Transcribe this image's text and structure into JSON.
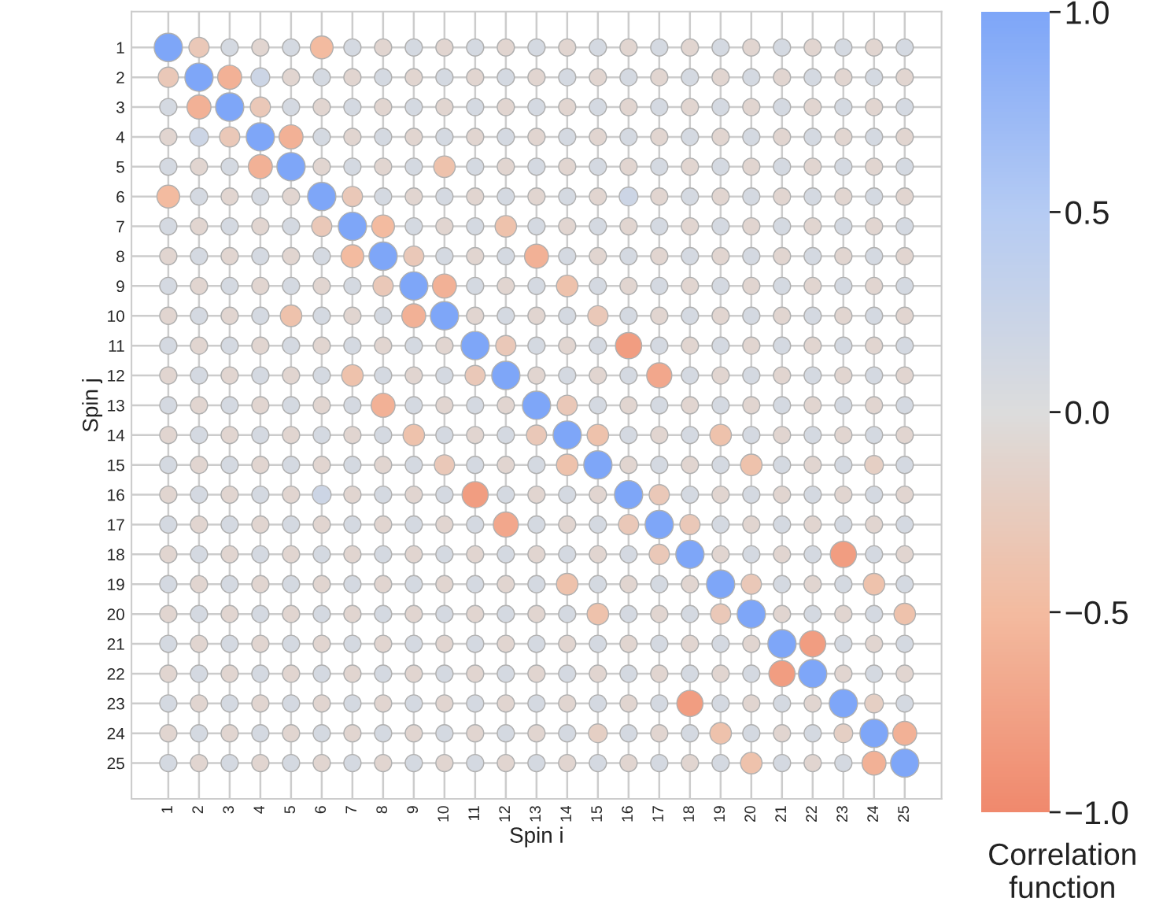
{
  "chart_data": {
    "type": "scatter",
    "marker": "circle",
    "grid": true,
    "xlabel": "Spin i",
    "ylabel": "Spin j",
    "clabel": "Correlation function",
    "xlim": [
      -0.2,
      26.2
    ],
    "ylim": [
      26.2,
      -0.2
    ],
    "xticks": [
      1,
      2,
      3,
      4,
      5,
      6,
      7,
      8,
      9,
      10,
      11,
      12,
      13,
      14,
      15,
      16,
      17,
      18,
      19,
      20,
      21,
      22,
      23,
      24,
      25
    ],
    "yticks": [
      1,
      2,
      3,
      4,
      5,
      6,
      7,
      8,
      9,
      10,
      11,
      12,
      13,
      14,
      15,
      16,
      17,
      18,
      19,
      20,
      21,
      22,
      23,
      24,
      25
    ],
    "clim": [
      -1,
      1
    ],
    "cticks": [
      {
        "value": -1,
        "label": "−1.0"
      },
      {
        "value": -0.5,
        "label": "−0.5"
      },
      {
        "value": 0,
        "label": "0.0"
      },
      {
        "value": 0.5,
        "label": "0.5"
      },
      {
        "value": 1,
        "label": "1.0"
      }
    ],
    "x": [
      1,
      2,
      3,
      4,
      5,
      6,
      7,
      8,
      9,
      10,
      11,
      12,
      13,
      14,
      15,
      16,
      17,
      18,
      19,
      20,
      21,
      22,
      23,
      24,
      25
    ],
    "series": [
      {
        "values": [
          1,
          1,
          1,
          1,
          1,
          1,
          1,
          1,
          1,
          1,
          1,
          1,
          1,
          1,
          1,
          1,
          1,
          1,
          1,
          1,
          1,
          1,
          1,
          1,
          1
        ],
        "colors": [
          "#7ea6f8",
          "#eac8b8",
          "#d4d9e1",
          "#e1d5d0",
          "#d4d9e1",
          "#f3bba0",
          "#d4d9e1",
          "#e1d5d0",
          "#d4d9e1",
          "#e1d5d0",
          "#d4d9e1",
          "#e1d5d0",
          "#d4d9e1",
          "#e1d5d0",
          "#d4d9e1",
          "#e1d5d0",
          "#d4d9e1",
          "#e1d5d0",
          "#d4d9e1",
          "#e1d5d0",
          "#d4d9e1",
          "#e1d5d0",
          "#d4d9e1",
          "#e1d5d0",
          "#d4d9e1"
        ],
        "sizes": [
          1,
          0.51,
          0.37,
          0.37,
          0.37,
          0.65,
          0.37,
          0.37,
          0.37,
          0.37,
          0.37,
          0.37,
          0.37,
          0.37,
          0.37,
          0.37,
          0.37,
          0.37,
          0.37,
          0.37,
          0.37,
          0.37,
          0.37,
          0.37,
          0.37
        ]
      },
      {
        "values": [
          2,
          2,
          2,
          2,
          2,
          2,
          2,
          2,
          2,
          2,
          2,
          2,
          2,
          2,
          2,
          2,
          2,
          2,
          2,
          2,
          2,
          2,
          2,
          2,
          2
        ],
        "colors": [
          "#eac8b8",
          "#7ea6f8",
          "#f2b196",
          "#ccd5e5",
          "#e1d5d0",
          "#d4d9e1",
          "#e1d5d0",
          "#d4d9e1",
          "#e1d5d0",
          "#d4d9e1",
          "#e1d5d0",
          "#d4d9e1",
          "#e1d5d0",
          "#d4d9e1",
          "#e1d5d0",
          "#d4d9e1",
          "#e1d5d0",
          "#d4d9e1",
          "#e1d5d0",
          "#d4d9e1",
          "#e1d5d0",
          "#d4d9e1",
          "#e1d5d0",
          "#d4d9e1",
          "#e1d5d0"
        ],
        "sizes": [
          0.51,
          1,
          0.72,
          0.44,
          0.37,
          0.37,
          0.37,
          0.37,
          0.37,
          0.37,
          0.37,
          0.37,
          0.37,
          0.37,
          0.37,
          0.37,
          0.37,
          0.37,
          0.37,
          0.37,
          0.37,
          0.37,
          0.37,
          0.37,
          0.37
        ]
      },
      {
        "values": [
          3,
          3,
          3,
          3,
          3,
          3,
          3,
          3,
          3,
          3,
          3,
          3,
          3,
          3,
          3,
          3,
          3,
          3,
          3,
          3,
          3,
          3,
          3,
          3,
          3
        ],
        "colors": [
          "#d4d9e1",
          "#f2b196",
          "#7ea6f8",
          "#eac8b8",
          "#d4d9e1",
          "#e1d5d0",
          "#d4d9e1",
          "#e1d5d0",
          "#d4d9e1",
          "#e1d5d0",
          "#d4d9e1",
          "#e1d5d0",
          "#d4d9e1",
          "#e1d5d0",
          "#d4d9e1",
          "#e1d5d0",
          "#d4d9e1",
          "#e1d5d0",
          "#d4d9e1",
          "#e1d5d0",
          "#d4d9e1",
          "#e1d5d0",
          "#d4d9e1",
          "#e1d5d0",
          "#d4d9e1"
        ],
        "sizes": [
          0.37,
          0.72,
          1,
          0.51,
          0.37,
          0.37,
          0.37,
          0.37,
          0.37,
          0.37,
          0.37,
          0.37,
          0.37,
          0.37,
          0.37,
          0.37,
          0.37,
          0.37,
          0.37,
          0.37,
          0.37,
          0.37,
          0.37,
          0.37,
          0.37
        ]
      },
      {
        "values": [
          4,
          4,
          4,
          4,
          4,
          4,
          4,
          4,
          4,
          4,
          4,
          4,
          4,
          4,
          4,
          4,
          4,
          4,
          4,
          4,
          4,
          4,
          4,
          4,
          4
        ],
        "colors": [
          "#e1d5d0",
          "#ccd5e5",
          "#eac8b8",
          "#7ea6f8",
          "#f2b196",
          "#d4d9e1",
          "#e1d5d0",
          "#d4d9e1",
          "#e1d5d0",
          "#d4d9e1",
          "#e1d5d0",
          "#d4d9e1",
          "#e1d5d0",
          "#d4d9e1",
          "#e1d5d0",
          "#d4d9e1",
          "#e1d5d0",
          "#d4d9e1",
          "#e1d5d0",
          "#d4d9e1",
          "#e1d5d0",
          "#d4d9e1",
          "#e1d5d0",
          "#d4d9e1",
          "#e1d5d0"
        ],
        "sizes": [
          0.37,
          0.44,
          0.51,
          1,
          0.72,
          0.37,
          0.37,
          0.37,
          0.37,
          0.37,
          0.37,
          0.37,
          0.37,
          0.37,
          0.37,
          0.37,
          0.37,
          0.37,
          0.37,
          0.37,
          0.37,
          0.37,
          0.37,
          0.37,
          0.37
        ]
      },
      {
        "values": [
          5,
          5,
          5,
          5,
          5,
          5,
          5,
          5,
          5,
          5,
          5,
          5,
          5,
          5,
          5,
          5,
          5,
          5,
          5,
          5,
          5,
          5,
          5,
          5,
          5
        ],
        "colors": [
          "#d4d9e1",
          "#e1d5d0",
          "#d4d9e1",
          "#f2b196",
          "#7ea6f8",
          "#e1d5d0",
          "#d4d9e1",
          "#e1d5d0",
          "#d4d9e1",
          "#eec2ac",
          "#d4d9e1",
          "#e1d5d0",
          "#d4d9e1",
          "#e1d5d0",
          "#d4d9e1",
          "#e1d5d0",
          "#d4d9e1",
          "#e1d5d0",
          "#d4d9e1",
          "#e1d5d0",
          "#d4d9e1",
          "#e1d5d0",
          "#d4d9e1",
          "#e1d5d0",
          "#d4d9e1"
        ],
        "sizes": [
          0.37,
          0.37,
          0.37,
          0.72,
          1,
          0.37,
          0.37,
          0.37,
          0.37,
          0.58,
          0.37,
          0.37,
          0.37,
          0.37,
          0.37,
          0.37,
          0.37,
          0.37,
          0.37,
          0.37,
          0.37,
          0.37,
          0.37,
          0.37,
          0.37
        ]
      },
      {
        "values": [
          6,
          6,
          6,
          6,
          6,
          6,
          6,
          6,
          6,
          6,
          6,
          6,
          6,
          6,
          6,
          6,
          6,
          6,
          6,
          6,
          6,
          6,
          6,
          6,
          6
        ],
        "colors": [
          "#f3bba0",
          "#d4d9e1",
          "#e1d5d0",
          "#d4d9e1",
          "#e1d5d0",
          "#7ea6f8",
          "#eac8b8",
          "#d4d9e1",
          "#e1d5d0",
          "#d4d9e1",
          "#e1d5d0",
          "#d4d9e1",
          "#e1d5d0",
          "#d4d9e1",
          "#e1d5d0",
          "#ccd5e5",
          "#e1d5d0",
          "#d4d9e1",
          "#e1d5d0",
          "#d4d9e1",
          "#e1d5d0",
          "#d4d9e1",
          "#e1d5d0",
          "#d4d9e1",
          "#e1d5d0"
        ],
        "sizes": [
          0.65,
          0.37,
          0.37,
          0.37,
          0.37,
          1,
          0.51,
          0.37,
          0.37,
          0.37,
          0.37,
          0.37,
          0.37,
          0.37,
          0.37,
          0.44,
          0.37,
          0.37,
          0.37,
          0.37,
          0.37,
          0.37,
          0.37,
          0.37,
          0.37
        ]
      },
      {
        "values": [
          7,
          7,
          7,
          7,
          7,
          7,
          7,
          7,
          7,
          7,
          7,
          7,
          7,
          7,
          7,
          7,
          7,
          7,
          7,
          7,
          7,
          7,
          7,
          7,
          7
        ],
        "colors": [
          "#d4d9e1",
          "#e1d5d0",
          "#d4d9e1",
          "#e1d5d0",
          "#d4d9e1",
          "#eac8b8",
          "#7ea6f8",
          "#f3bba0",
          "#d4d9e1",
          "#e1d5d0",
          "#d4d9e1",
          "#eec2ac",
          "#d4d9e1",
          "#e1d5d0",
          "#d4d9e1",
          "#e1d5d0",
          "#d4d9e1",
          "#e1d5d0",
          "#d4d9e1",
          "#e1d5d0",
          "#d4d9e1",
          "#e1d5d0",
          "#d4d9e1",
          "#e1d5d0",
          "#d4d9e1"
        ],
        "sizes": [
          0.37,
          0.37,
          0.37,
          0.37,
          0.37,
          0.51,
          1,
          0.65,
          0.37,
          0.37,
          0.37,
          0.58,
          0.37,
          0.37,
          0.37,
          0.37,
          0.37,
          0.37,
          0.37,
          0.37,
          0.37,
          0.37,
          0.37,
          0.37,
          0.37
        ]
      },
      {
        "values": [
          8,
          8,
          8,
          8,
          8,
          8,
          8,
          8,
          8,
          8,
          8,
          8,
          8,
          8,
          8,
          8,
          8,
          8,
          8,
          8,
          8,
          8,
          8,
          8,
          8
        ],
        "colors": [
          "#e1d5d0",
          "#d4d9e1",
          "#e1d5d0",
          "#d4d9e1",
          "#e1d5d0",
          "#d4d9e1",
          "#f3bba0",
          "#7ea6f8",
          "#eac8b8",
          "#d4d9e1",
          "#e1d5d0",
          "#d4d9e1",
          "#f2b196",
          "#d4d9e1",
          "#e1d5d0",
          "#d4d9e1",
          "#e1d5d0",
          "#d4d9e1",
          "#e1d5d0",
          "#d4d9e1",
          "#e1d5d0",
          "#d4d9e1",
          "#e1d5d0",
          "#d4d9e1",
          "#e1d5d0"
        ],
        "sizes": [
          0.37,
          0.37,
          0.37,
          0.37,
          0.37,
          0.37,
          0.65,
          1,
          0.51,
          0.37,
          0.37,
          0.37,
          0.72,
          0.37,
          0.37,
          0.37,
          0.37,
          0.37,
          0.37,
          0.37,
          0.37,
          0.37,
          0.37,
          0.37,
          0.37
        ]
      },
      {
        "values": [
          9,
          9,
          9,
          9,
          9,
          9,
          9,
          9,
          9,
          9,
          9,
          9,
          9,
          9,
          9,
          9,
          9,
          9,
          9,
          9,
          9,
          9,
          9,
          9,
          9
        ],
        "colors": [
          "#d4d9e1",
          "#e1d5d0",
          "#d4d9e1",
          "#e1d5d0",
          "#d4d9e1",
          "#e1d5d0",
          "#d4d9e1",
          "#eac8b8",
          "#7ea6f8",
          "#f2b196",
          "#d4d9e1",
          "#e1d5d0",
          "#d4d9e1",
          "#eec2ac",
          "#d4d9e1",
          "#e1d5d0",
          "#d4d9e1",
          "#e1d5d0",
          "#d4d9e1",
          "#e1d5d0",
          "#d4d9e1",
          "#e1d5d0",
          "#d4d9e1",
          "#e1d5d0",
          "#d4d9e1"
        ],
        "sizes": [
          0.37,
          0.37,
          0.37,
          0.37,
          0.37,
          0.37,
          0.37,
          0.51,
          1,
          0.72,
          0.37,
          0.37,
          0.37,
          0.58,
          0.37,
          0.37,
          0.37,
          0.37,
          0.37,
          0.37,
          0.37,
          0.37,
          0.37,
          0.37,
          0.37
        ]
      },
      {
        "values": [
          10,
          10,
          10,
          10,
          10,
          10,
          10,
          10,
          10,
          10,
          10,
          10,
          10,
          10,
          10,
          10,
          10,
          10,
          10,
          10,
          10,
          10,
          10,
          10,
          10
        ],
        "colors": [
          "#e1d5d0",
          "#d4d9e1",
          "#e1d5d0",
          "#d4d9e1",
          "#eec2ac",
          "#d4d9e1",
          "#e1d5d0",
          "#d4d9e1",
          "#f2b196",
          "#7ea6f8",
          "#e1d5d0",
          "#d4d9e1",
          "#e1d5d0",
          "#d4d9e1",
          "#eac8b8",
          "#d4d9e1",
          "#e1d5d0",
          "#d4d9e1",
          "#e1d5d0",
          "#d4d9e1",
          "#e1d5d0",
          "#d4d9e1",
          "#e1d5d0",
          "#d4d9e1",
          "#e1d5d0"
        ],
        "sizes": [
          0.37,
          0.37,
          0.37,
          0.37,
          0.58,
          0.37,
          0.37,
          0.37,
          0.72,
          1,
          0.37,
          0.37,
          0.37,
          0.37,
          0.51,
          0.37,
          0.37,
          0.37,
          0.37,
          0.37,
          0.37,
          0.37,
          0.37,
          0.37,
          0.37
        ]
      },
      {
        "values": [
          11,
          11,
          11,
          11,
          11,
          11,
          11,
          11,
          11,
          11,
          11,
          11,
          11,
          11,
          11,
          11,
          11,
          11,
          11,
          11,
          11,
          11,
          11,
          11,
          11
        ],
        "colors": [
          "#d4d9e1",
          "#e1d5d0",
          "#d4d9e1",
          "#e1d5d0",
          "#d4d9e1",
          "#e1d5d0",
          "#d4d9e1",
          "#e1d5d0",
          "#d4d9e1",
          "#e1d5d0",
          "#7ea6f8",
          "#eac8b8",
          "#d4d9e1",
          "#e1d5d0",
          "#d4d9e1",
          "#f19d81",
          "#d4d9e1",
          "#e1d5d0",
          "#d4d9e1",
          "#e1d5d0",
          "#d4d9e1",
          "#e1d5d0",
          "#d4d9e1",
          "#e1d5d0",
          "#d4d9e1"
        ],
        "sizes": [
          0.37,
          0.37,
          0.37,
          0.37,
          0.37,
          0.37,
          0.37,
          0.37,
          0.37,
          0.37,
          1,
          0.51,
          0.37,
          0.37,
          0.37,
          0.86,
          0.37,
          0.37,
          0.37,
          0.37,
          0.37,
          0.37,
          0.37,
          0.37,
          0.37
        ]
      },
      {
        "values": [
          12,
          12,
          12,
          12,
          12,
          12,
          12,
          12,
          12,
          12,
          12,
          12,
          12,
          12,
          12,
          12,
          12,
          12,
          12,
          12,
          12,
          12,
          12,
          12,
          12
        ],
        "colors": [
          "#e1d5d0",
          "#d4d9e1",
          "#e1d5d0",
          "#d4d9e1",
          "#e1d5d0",
          "#d4d9e1",
          "#eec2ac",
          "#d4d9e1",
          "#e1d5d0",
          "#d4d9e1",
          "#eac8b8",
          "#7ea6f8",
          "#e1d5d0",
          "#d4d9e1",
          "#e1d5d0",
          "#d4d9e1",
          "#f2a78c",
          "#d4d9e1",
          "#e1d5d0",
          "#d4d9e1",
          "#e1d5d0",
          "#d4d9e1",
          "#e1d5d0",
          "#d4d9e1",
          "#e1d5d0"
        ],
        "sizes": [
          0.37,
          0.37,
          0.37,
          0.37,
          0.37,
          0.37,
          0.58,
          0.37,
          0.37,
          0.37,
          0.51,
          1,
          0.37,
          0.37,
          0.37,
          0.37,
          0.79,
          0.37,
          0.37,
          0.37,
          0.37,
          0.37,
          0.37,
          0.37,
          0.37
        ]
      },
      {
        "values": [
          13,
          13,
          13,
          13,
          13,
          13,
          13,
          13,
          13,
          13,
          13,
          13,
          13,
          13,
          13,
          13,
          13,
          13,
          13,
          13,
          13,
          13,
          13,
          13,
          13
        ],
        "colors": [
          "#d4d9e1",
          "#e1d5d0",
          "#d4d9e1",
          "#e1d5d0",
          "#d4d9e1",
          "#e1d5d0",
          "#d4d9e1",
          "#f2b196",
          "#d4d9e1",
          "#e1d5d0",
          "#d4d9e1",
          "#e1d5d0",
          "#7ea6f8",
          "#eac8b8",
          "#d4d9e1",
          "#e1d5d0",
          "#d4d9e1",
          "#e1d5d0",
          "#d4d9e1",
          "#e1d5d0",
          "#d4d9e1",
          "#e1d5d0",
          "#d4d9e1",
          "#e1d5d0",
          "#d4d9e1"
        ],
        "sizes": [
          0.37,
          0.37,
          0.37,
          0.37,
          0.37,
          0.37,
          0.37,
          0.72,
          0.37,
          0.37,
          0.37,
          0.37,
          1,
          0.51,
          0.37,
          0.37,
          0.37,
          0.37,
          0.37,
          0.37,
          0.37,
          0.37,
          0.37,
          0.37,
          0.37
        ]
      },
      {
        "values": [
          14,
          14,
          14,
          14,
          14,
          14,
          14,
          14,
          14,
          14,
          14,
          14,
          14,
          14,
          14,
          14,
          14,
          14,
          14,
          14,
          14,
          14,
          14,
          14,
          14
        ],
        "colors": [
          "#e1d5d0",
          "#d4d9e1",
          "#e1d5d0",
          "#d4d9e1",
          "#e1d5d0",
          "#d4d9e1",
          "#e1d5d0",
          "#d4d9e1",
          "#eec2ac",
          "#d4d9e1",
          "#e1d5d0",
          "#d4d9e1",
          "#eac8b8",
          "#7ea6f8",
          "#eec2ac",
          "#d4d9e1",
          "#e1d5d0",
          "#d4d9e1",
          "#eec2ac",
          "#d4d9e1",
          "#e1d5d0",
          "#d4d9e1",
          "#e1d5d0",
          "#d4d9e1",
          "#e1d5d0"
        ],
        "sizes": [
          0.37,
          0.37,
          0.37,
          0.37,
          0.37,
          0.37,
          0.37,
          0.37,
          0.58,
          0.37,
          0.37,
          0.37,
          0.51,
          1,
          0.58,
          0.37,
          0.37,
          0.37,
          0.58,
          0.37,
          0.37,
          0.37,
          0.37,
          0.37,
          0.37
        ]
      },
      {
        "values": [
          15,
          15,
          15,
          15,
          15,
          15,
          15,
          15,
          15,
          15,
          15,
          15,
          15,
          15,
          15,
          15,
          15,
          15,
          15,
          15,
          15,
          15,
          15,
          15,
          15
        ],
        "colors": [
          "#d4d9e1",
          "#e1d5d0",
          "#d4d9e1",
          "#e1d5d0",
          "#d4d9e1",
          "#e1d5d0",
          "#d4d9e1",
          "#e1d5d0",
          "#d4d9e1",
          "#eac8b8",
          "#d4d9e1",
          "#e1d5d0",
          "#d4d9e1",
          "#eec2ac",
          "#7ea6f8",
          "#e1d5d0",
          "#d4d9e1",
          "#e1d5d0",
          "#d4d9e1",
          "#eec2ac",
          "#d4d9e1",
          "#e1d5d0",
          "#d4d9e1",
          "#e5cfc4",
          "#d4d9e1"
        ],
        "sizes": [
          0.37,
          0.37,
          0.37,
          0.37,
          0.37,
          0.37,
          0.37,
          0.37,
          0.37,
          0.51,
          0.37,
          0.37,
          0.37,
          0.58,
          1,
          0.37,
          0.37,
          0.37,
          0.37,
          0.58,
          0.37,
          0.37,
          0.37,
          0.44,
          0.37
        ]
      },
      {
        "values": [
          16,
          16,
          16,
          16,
          16,
          16,
          16,
          16,
          16,
          16,
          16,
          16,
          16,
          16,
          16,
          16,
          16,
          16,
          16,
          16,
          16,
          16,
          16,
          16,
          16
        ],
        "colors": [
          "#e1d5d0",
          "#d4d9e1",
          "#e1d5d0",
          "#d4d9e1",
          "#e1d5d0",
          "#ccd5e5",
          "#e1d5d0",
          "#d4d9e1",
          "#e1d5d0",
          "#d4d9e1",
          "#f19d81",
          "#d4d9e1",
          "#e1d5d0",
          "#d4d9e1",
          "#e1d5d0",
          "#7ea6f8",
          "#eac8b8",
          "#d4d9e1",
          "#e1d5d0",
          "#d4d9e1",
          "#e1d5d0",
          "#d4d9e1",
          "#e1d5d0",
          "#d4d9e1",
          "#e1d5d0"
        ],
        "sizes": [
          0.37,
          0.37,
          0.37,
          0.37,
          0.37,
          0.44,
          0.37,
          0.37,
          0.37,
          0.37,
          0.86,
          0.37,
          0.37,
          0.37,
          0.37,
          1,
          0.51,
          0.37,
          0.37,
          0.37,
          0.37,
          0.37,
          0.37,
          0.37,
          0.37
        ]
      },
      {
        "values": [
          17,
          17,
          17,
          17,
          17,
          17,
          17,
          17,
          17,
          17,
          17,
          17,
          17,
          17,
          17,
          17,
          17,
          17,
          17,
          17,
          17,
          17,
          17,
          17,
          17
        ],
        "colors": [
          "#d4d9e1",
          "#e1d5d0",
          "#d4d9e1",
          "#e1d5d0",
          "#d4d9e1",
          "#e1d5d0",
          "#d4d9e1",
          "#e1d5d0",
          "#d4d9e1",
          "#e1d5d0",
          "#d4d9e1",
          "#f2a78c",
          "#d4d9e1",
          "#e1d5d0",
          "#d4d9e1",
          "#eac8b8",
          "#7ea6f8",
          "#eac8b8",
          "#d4d9e1",
          "#e1d5d0",
          "#d4d9e1",
          "#e1d5d0",
          "#d4d9e1",
          "#e1d5d0",
          "#d4d9e1"
        ],
        "sizes": [
          0.37,
          0.37,
          0.37,
          0.37,
          0.37,
          0.37,
          0.37,
          0.37,
          0.37,
          0.37,
          0.37,
          0.79,
          0.37,
          0.37,
          0.37,
          0.51,
          1,
          0.51,
          0.37,
          0.37,
          0.37,
          0.37,
          0.37,
          0.37,
          0.37
        ]
      },
      {
        "values": [
          18,
          18,
          18,
          18,
          18,
          18,
          18,
          18,
          18,
          18,
          18,
          18,
          18,
          18,
          18,
          18,
          18,
          18,
          18,
          18,
          18,
          18,
          18,
          18,
          18
        ],
        "colors": [
          "#e1d5d0",
          "#d4d9e1",
          "#e1d5d0",
          "#d4d9e1",
          "#e1d5d0",
          "#d4d9e1",
          "#e1d5d0",
          "#d4d9e1",
          "#e1d5d0",
          "#d4d9e1",
          "#e1d5d0",
          "#d4d9e1",
          "#e1d5d0",
          "#d4d9e1",
          "#e1d5d0",
          "#d4d9e1",
          "#eac8b8",
          "#7ea6f8",
          "#e1d5d0",
          "#d4d9e1",
          "#e1d5d0",
          "#d4d9e1",
          "#f19d81",
          "#d4d9e1",
          "#e1d5d0"
        ],
        "sizes": [
          0.37,
          0.37,
          0.37,
          0.37,
          0.37,
          0.37,
          0.37,
          0.37,
          0.37,
          0.37,
          0.37,
          0.37,
          0.37,
          0.37,
          0.37,
          0.37,
          0.51,
          1,
          0.37,
          0.37,
          0.37,
          0.37,
          0.86,
          0.37,
          0.37
        ]
      },
      {
        "values": [
          19,
          19,
          19,
          19,
          19,
          19,
          19,
          19,
          19,
          19,
          19,
          19,
          19,
          19,
          19,
          19,
          19,
          19,
          19,
          19,
          19,
          19,
          19,
          19,
          19
        ],
        "colors": [
          "#d4d9e1",
          "#e1d5d0",
          "#d4d9e1",
          "#e1d5d0",
          "#d4d9e1",
          "#e1d5d0",
          "#d4d9e1",
          "#e1d5d0",
          "#d4d9e1",
          "#e1d5d0",
          "#d4d9e1",
          "#e1d5d0",
          "#d4d9e1",
          "#eec2ac",
          "#d4d9e1",
          "#e1d5d0",
          "#d4d9e1",
          "#e1d5d0",
          "#7ea6f8",
          "#eac8b8",
          "#d4d9e1",
          "#e1d5d0",
          "#d4d9e1",
          "#eec2ac",
          "#d4d9e1"
        ],
        "sizes": [
          0.37,
          0.37,
          0.37,
          0.37,
          0.37,
          0.37,
          0.37,
          0.37,
          0.37,
          0.37,
          0.37,
          0.37,
          0.37,
          0.58,
          0.37,
          0.37,
          0.37,
          0.37,
          1,
          0.51,
          0.37,
          0.37,
          0.37,
          0.58,
          0.37
        ]
      },
      {
        "values": [
          20,
          20,
          20,
          20,
          20,
          20,
          20,
          20,
          20,
          20,
          20,
          20,
          20,
          20,
          20,
          20,
          20,
          20,
          20,
          20,
          20,
          20,
          20,
          20,
          20
        ],
        "colors": [
          "#e1d5d0",
          "#d4d9e1",
          "#e1d5d0",
          "#d4d9e1",
          "#e1d5d0",
          "#d4d9e1",
          "#e1d5d0",
          "#d4d9e1",
          "#e1d5d0",
          "#d4d9e1",
          "#e1d5d0",
          "#d4d9e1",
          "#e1d5d0",
          "#d4d9e1",
          "#eec2ac",
          "#d4d9e1",
          "#e1d5d0",
          "#d4d9e1",
          "#eac8b8",
          "#7ea6f8",
          "#e1d5d0",
          "#d4d9e1",
          "#e1d5d0",
          "#d4d9e1",
          "#eec2ac"
        ],
        "sizes": [
          0.37,
          0.37,
          0.37,
          0.37,
          0.37,
          0.37,
          0.37,
          0.37,
          0.37,
          0.37,
          0.37,
          0.37,
          0.37,
          0.37,
          0.58,
          0.37,
          0.37,
          0.37,
          0.51,
          1,
          0.37,
          0.37,
          0.37,
          0.37,
          0.58
        ]
      },
      {
        "values": [
          21,
          21,
          21,
          21,
          21,
          21,
          21,
          21,
          21,
          21,
          21,
          21,
          21,
          21,
          21,
          21,
          21,
          21,
          21,
          21,
          21,
          21,
          21,
          21,
          21
        ],
        "colors": [
          "#d4d9e1",
          "#e1d5d0",
          "#d4d9e1",
          "#e1d5d0",
          "#d4d9e1",
          "#e1d5d0",
          "#d4d9e1",
          "#e1d5d0",
          "#d4d9e1",
          "#e1d5d0",
          "#d4d9e1",
          "#e1d5d0",
          "#d4d9e1",
          "#e1d5d0",
          "#d4d9e1",
          "#e1d5d0",
          "#d4d9e1",
          "#e1d5d0",
          "#d4d9e1",
          "#e1d5d0",
          "#7ea6f8",
          "#f19d81",
          "#d4d9e1",
          "#e1d5d0",
          "#d4d9e1"
        ],
        "sizes": [
          0.37,
          0.37,
          0.37,
          0.37,
          0.37,
          0.37,
          0.37,
          0.37,
          0.37,
          0.37,
          0.37,
          0.37,
          0.37,
          0.37,
          0.37,
          0.37,
          0.37,
          0.37,
          0.37,
          0.37,
          1,
          0.86,
          0.37,
          0.37,
          0.37
        ]
      },
      {
        "values": [
          22,
          22,
          22,
          22,
          22,
          22,
          22,
          22,
          22,
          22,
          22,
          22,
          22,
          22,
          22,
          22,
          22,
          22,
          22,
          22,
          22,
          22,
          22,
          22,
          22
        ],
        "colors": [
          "#e1d5d0",
          "#d4d9e1",
          "#e1d5d0",
          "#d4d9e1",
          "#e1d5d0",
          "#d4d9e1",
          "#e1d5d0",
          "#d4d9e1",
          "#e1d5d0",
          "#d4d9e1",
          "#e1d5d0",
          "#d4d9e1",
          "#e1d5d0",
          "#d4d9e1",
          "#e1d5d0",
          "#d4d9e1",
          "#e1d5d0",
          "#d4d9e1",
          "#e1d5d0",
          "#d4d9e1",
          "#f19d81",
          "#7ea6f8",
          "#e1d5d0",
          "#d4d9e1",
          "#e1d5d0"
        ],
        "sizes": [
          0.37,
          0.37,
          0.37,
          0.37,
          0.37,
          0.37,
          0.37,
          0.37,
          0.37,
          0.37,
          0.37,
          0.37,
          0.37,
          0.37,
          0.37,
          0.37,
          0.37,
          0.37,
          0.37,
          0.37,
          0.86,
          1,
          0.37,
          0.37,
          0.37
        ]
      },
      {
        "values": [
          23,
          23,
          23,
          23,
          23,
          23,
          23,
          23,
          23,
          23,
          23,
          23,
          23,
          23,
          23,
          23,
          23,
          23,
          23,
          23,
          23,
          23,
          23,
          23,
          23
        ],
        "colors": [
          "#d4d9e1",
          "#e1d5d0",
          "#d4d9e1",
          "#e1d5d0",
          "#d4d9e1",
          "#e1d5d0",
          "#d4d9e1",
          "#e1d5d0",
          "#d4d9e1",
          "#e1d5d0",
          "#d4d9e1",
          "#e1d5d0",
          "#d4d9e1",
          "#e1d5d0",
          "#d4d9e1",
          "#e1d5d0",
          "#d4d9e1",
          "#f19d81",
          "#d4d9e1",
          "#e1d5d0",
          "#d4d9e1",
          "#e1d5d0",
          "#7ea6f8",
          "#e5cfc4",
          "#d4d9e1"
        ],
        "sizes": [
          0.37,
          0.37,
          0.37,
          0.37,
          0.37,
          0.37,
          0.37,
          0.37,
          0.37,
          0.37,
          0.37,
          0.37,
          0.37,
          0.37,
          0.37,
          0.37,
          0.37,
          0.86,
          0.37,
          0.37,
          0.37,
          0.37,
          1,
          0.44,
          0.37
        ]
      },
      {
        "values": [
          24,
          24,
          24,
          24,
          24,
          24,
          24,
          24,
          24,
          24,
          24,
          24,
          24,
          24,
          24,
          24,
          24,
          24,
          24,
          24,
          24,
          24,
          24,
          24,
          24
        ],
        "colors": [
          "#e1d5d0",
          "#d4d9e1",
          "#e1d5d0",
          "#d4d9e1",
          "#e1d5d0",
          "#d4d9e1",
          "#e1d5d0",
          "#d4d9e1",
          "#e1d5d0",
          "#d4d9e1",
          "#e1d5d0",
          "#d4d9e1",
          "#e1d5d0",
          "#d4d9e1",
          "#e5cfc4",
          "#d4d9e1",
          "#e1d5d0",
          "#d4d9e1",
          "#eec2ac",
          "#d4d9e1",
          "#e1d5d0",
          "#d4d9e1",
          "#e5cfc4",
          "#7ea6f8",
          "#f2b196"
        ],
        "sizes": [
          0.37,
          0.37,
          0.37,
          0.37,
          0.37,
          0.37,
          0.37,
          0.37,
          0.37,
          0.37,
          0.37,
          0.37,
          0.37,
          0.37,
          0.44,
          0.37,
          0.37,
          0.37,
          0.58,
          0.37,
          0.37,
          0.37,
          0.44,
          1,
          0.72
        ]
      },
      {
        "values": [
          25,
          25,
          25,
          25,
          25,
          25,
          25,
          25,
          25,
          25,
          25,
          25,
          25,
          25,
          25,
          25,
          25,
          25,
          25,
          25,
          25,
          25,
          25,
          25,
          25
        ],
        "colors": [
          "#d4d9e1",
          "#e1d5d0",
          "#d4d9e1",
          "#e1d5d0",
          "#d4d9e1",
          "#e1d5d0",
          "#d4d9e1",
          "#e1d5d0",
          "#d4d9e1",
          "#e1d5d0",
          "#d4d9e1",
          "#e1d5d0",
          "#d4d9e1",
          "#e1d5d0",
          "#d4d9e1",
          "#e1d5d0",
          "#d4d9e1",
          "#e1d5d0",
          "#d4d9e1",
          "#eec2ac",
          "#d4d9e1",
          "#e1d5d0",
          "#d4d9e1",
          "#f2b196",
          "#7ea6f8"
        ],
        "sizes": [
          0.37,
          0.37,
          0.37,
          0.37,
          0.37,
          0.37,
          0.37,
          0.37,
          0.37,
          0.37,
          0.37,
          0.37,
          0.37,
          0.37,
          0.37,
          0.37,
          0.37,
          0.37,
          0.37,
          0.58,
          0.37,
          0.37,
          0.37,
          0.72,
          1
        ]
      }
    ]
  }
}
